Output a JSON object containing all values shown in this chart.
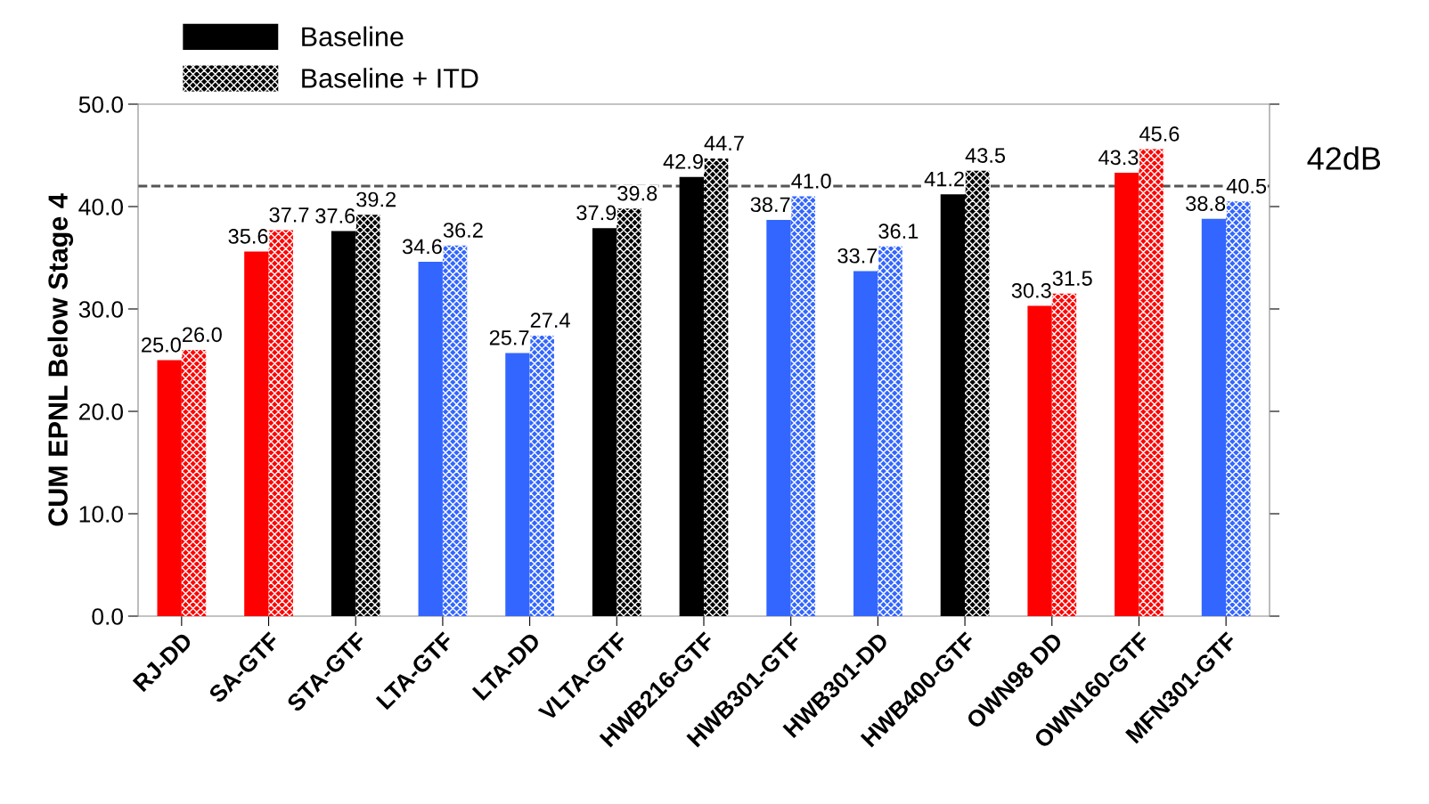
{
  "chart_data": {
    "type": "bar",
    "ylabel": "CUM EPNL Below Stage 4",
    "categories": [
      "RJ-DD",
      "SA-GTF",
      "STA-GTF",
      "LTA-GTF",
      "LTA-DD",
      "VLTA-GTF",
      "HWB216-GTF",
      "HWB301-GTF",
      "HWB301-DD",
      "HWB400-GTF",
      "OWN98 DD",
      "OWN160-GTF",
      "MFN301-GTF"
    ],
    "series": [
      {
        "name": "Baseline",
        "color": "#000000",
        "colors": [
          "#ff0000",
          "#ff0000",
          "#000000",
          "#3366ff",
          "#3366ff",
          "#000000",
          "#000000",
          "#3366ff",
          "#3366ff",
          "#000000",
          "#ff0000",
          "#ff0000",
          "#3366ff"
        ],
        "values": [
          25.0,
          35.6,
          37.6,
          34.6,
          25.7,
          37.9,
          42.9,
          38.7,
          33.7,
          41.2,
          30.3,
          43.3,
          38.8
        ],
        "value_labels": [
          "25.0",
          "35.6",
          "37.6",
          "34.6",
          "25.7",
          "37.9",
          "42.9",
          "38.7",
          "33.7",
          "41.2",
          "30.3",
          "43.3",
          "38.8"
        ]
      },
      {
        "name": "Baseline + ITD",
        "color": "#000000",
        "colors": [
          "#ff0000",
          "#ff0000",
          "#000000",
          "#3366ff",
          "#3366ff",
          "#000000",
          "#000000",
          "#3366ff",
          "#3366ff",
          "#000000",
          "#ff0000",
          "#ff0000",
          "#3366ff"
        ],
        "values": [
          26.0,
          37.7,
          39.2,
          36.2,
          27.4,
          39.8,
          44.7,
          41.0,
          36.1,
          43.5,
          31.5,
          45.6,
          40.5
        ],
        "value_labels": [
          "26.0",
          "37.7",
          "39.2",
          "36.2",
          "27.4",
          "39.8",
          "44.7",
          "41.0",
          "36.1",
          "43.5",
          "31.5",
          "45.6",
          "40.5"
        ]
      }
    ],
    "ylim": [
      0,
      50
    ],
    "yticks": [
      {
        "value": 0,
        "label": "0.0"
      },
      {
        "value": 10,
        "label": "10.0"
      },
      {
        "value": 20,
        "label": "20.0"
      },
      {
        "value": 30,
        "label": "30.0"
      },
      {
        "value": 40,
        "label": "40.0"
      },
      {
        "value": 50,
        "label": "50.0"
      }
    ],
    "ref_lines": [
      {
        "axis": "y",
        "value": 42,
        "label": "42dB",
        "color": "#555555",
        "line_style": "dashed"
      }
    ],
    "legend": "top left",
    "grid": false
  }
}
